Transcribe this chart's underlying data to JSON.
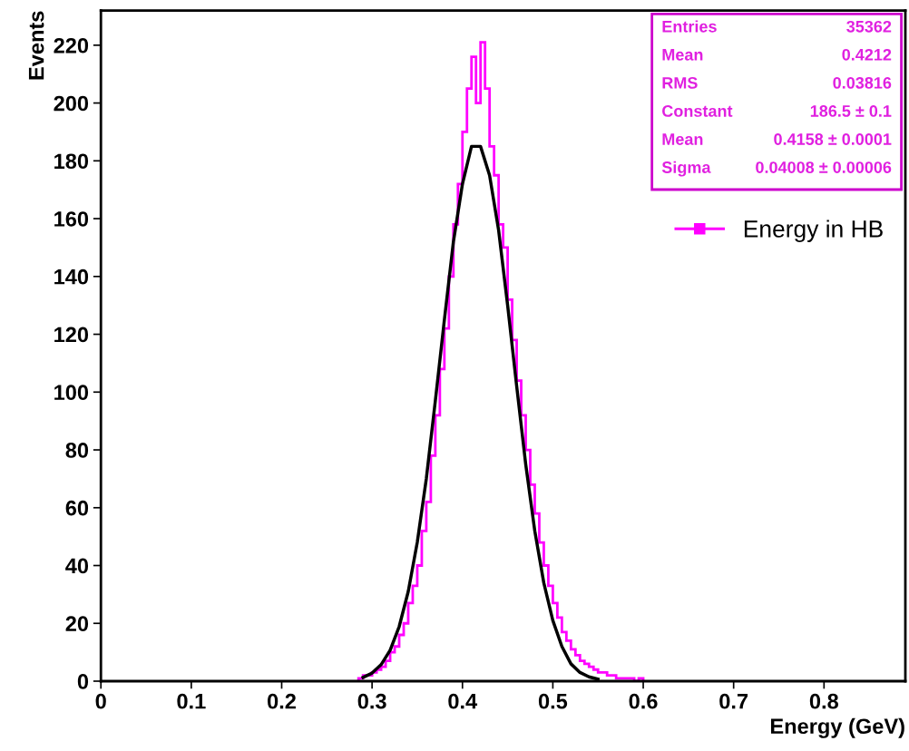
{
  "chart_data": {
    "type": "histogram",
    "xlabel": "Energy (GeV)",
    "ylabel": "Events",
    "xlim": [
      0,
      0.89
    ],
    "ylim": [
      0,
      232
    ],
    "xticks": [
      0,
      0.1,
      0.2,
      0.3,
      0.4,
      0.5,
      0.6,
      0.7,
      0.8
    ],
    "yticks": [
      0,
      20,
      40,
      60,
      80,
      100,
      120,
      140,
      160,
      180,
      200,
      220
    ],
    "grid": false,
    "legend": "top right",
    "annotations": [
      "Entries",
      "35362",
      "Mean",
      "0.4212",
      "RMS",
      "0.03816",
      "Constant",
      "186.5 ± 0.1",
      "Mean",
      "0.4158 ± 0.0001",
      "Sigma",
      "0.04008 ± 0.00006"
    ],
    "series": [
      {
        "name": "Energy in HB",
        "color": "#ff00ff",
        "marker": "square",
        "bins": [
          0.285,
          0.29,
          0.295,
          0.3,
          0.305,
          0.31,
          0.315,
          0.32,
          0.325,
          0.33,
          0.335,
          0.34,
          0.345,
          0.35,
          0.355,
          0.36,
          0.365,
          0.37,
          0.375,
          0.38,
          0.385,
          0.39,
          0.395,
          0.4,
          0.405,
          0.41,
          0.415,
          0.42,
          0.425,
          0.43,
          0.435,
          0.44,
          0.445,
          0.45,
          0.455,
          0.46,
          0.465,
          0.47,
          0.475,
          0.48,
          0.485,
          0.49,
          0.495,
          0.5,
          0.505,
          0.51,
          0.515,
          0.52,
          0.525,
          0.53,
          0.535,
          0.54,
          0.545,
          0.55,
          0.555,
          0.56,
          0.565,
          0.57,
          0.575,
          0.58,
          0.585,
          0.59,
          0.595,
          0.6
        ],
        "values": [
          1,
          2,
          2,
          3,
          4,
          5,
          7,
          10,
          12,
          16,
          20,
          27,
          33,
          40,
          52,
          62,
          78,
          92,
          108,
          122,
          140,
          158,
          172,
          190,
          205,
          216,
          200,
          221,
          205,
          185,
          175,
          158,
          150,
          132,
          118,
          104,
          92,
          80,
          68,
          58,
          48,
          40,
          33,
          27,
          22,
          17,
          14,
          11,
          9,
          7,
          6,
          5,
          4,
          3,
          3,
          2,
          2,
          1,
          1,
          1,
          1,
          0,
          1
        ]
      },
      {
        "type": "line",
        "color": "#000000",
        "x": [
          0.29,
          0.3,
          0.31,
          0.32,
          0.33,
          0.34,
          0.35,
          0.36,
          0.37,
          0.38,
          0.39,
          0.4,
          0.41,
          0.42,
          0.43,
          0.44,
          0.45,
          0.46,
          0.47,
          0.48,
          0.49,
          0.5,
          0.51,
          0.52,
          0.53,
          0.54,
          0.55
        ],
        "values": [
          1.3,
          2.8,
          5.7,
          10.7,
          18.9,
          31,
          48,
          70,
          97,
          125,
          152,
          172,
          185,
          185,
          175,
          156,
          130,
          102,
          75,
          52,
          34,
          21,
          12,
          6,
          3,
          1.5,
          0.7
        ]
      }
    ]
  }
}
